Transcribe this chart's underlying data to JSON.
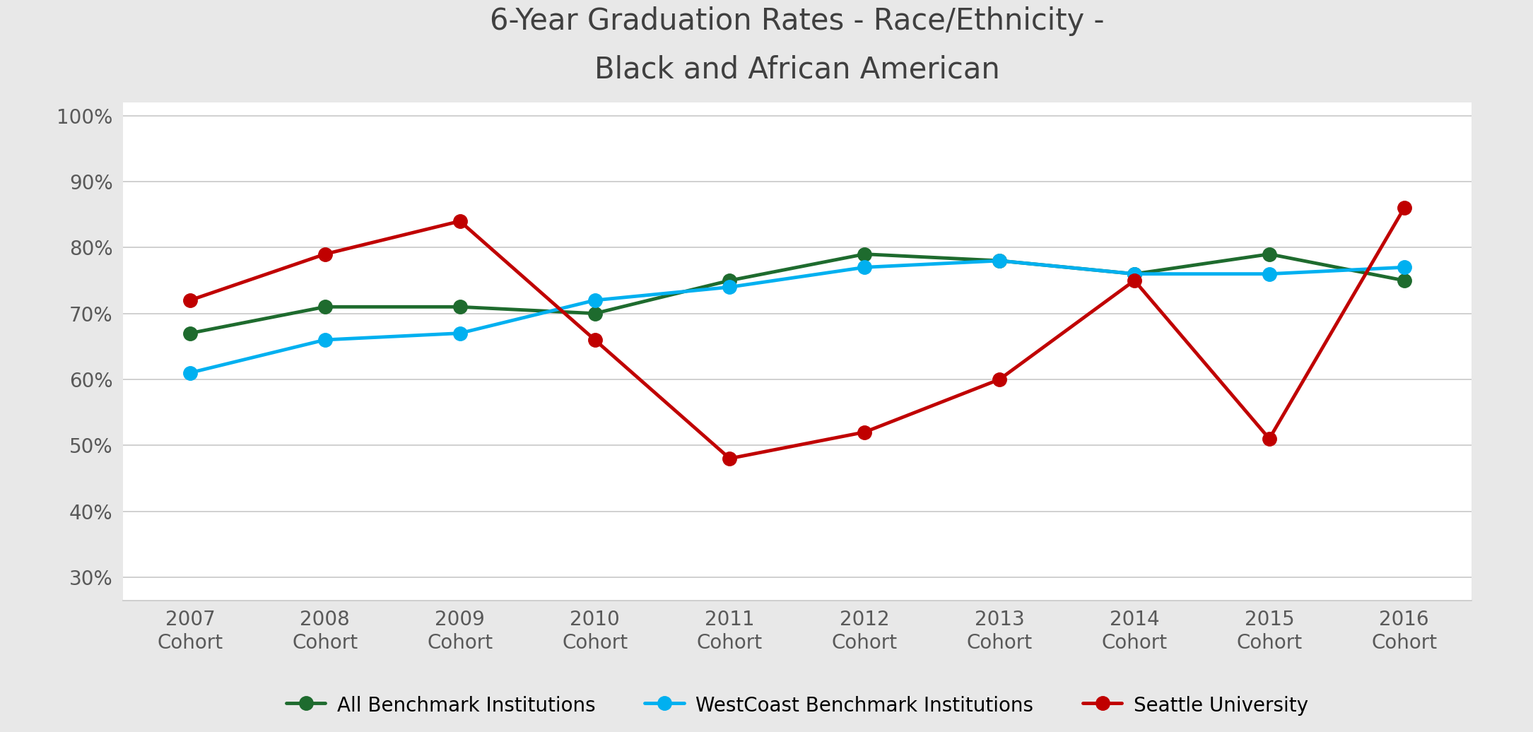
{
  "title": "6-Year Graduation Rates - Race/Ethnicity -\nBlack and African American",
  "categories": [
    "2007\nCohort",
    "2008\nCohort",
    "2009\nCohort",
    "2010\nCohort",
    "2011\nCohort",
    "2012\nCohort",
    "2013\nCohort",
    "2014\nCohort",
    "2015\nCohort",
    "2016\nCohort"
  ],
  "series": [
    {
      "label": "All Benchmark Institutions",
      "color": "#1E6B2E",
      "values": [
        0.67,
        0.71,
        0.71,
        0.7,
        0.75,
        0.79,
        0.78,
        0.76,
        0.79,
        0.75
      ]
    },
    {
      "label": "WestCoast Benchmark Institutions",
      "color": "#00B0F0",
      "values": [
        0.61,
        0.66,
        0.67,
        0.72,
        0.74,
        0.77,
        0.78,
        0.76,
        0.76,
        0.77
      ]
    },
    {
      "label": "Seattle University",
      "color": "#C00000",
      "values": [
        0.72,
        0.79,
        0.84,
        0.66,
        0.48,
        0.52,
        0.6,
        0.75,
        0.51,
        0.86
      ]
    }
  ],
  "ylim": [
    0.265,
    1.02
  ],
  "yticks": [
    0.3,
    0.4,
    0.5,
    0.6,
    0.7,
    0.8,
    0.9,
    1.0
  ],
  "ytick_labels": [
    "30%",
    "40%",
    "50%",
    "60%",
    "70%",
    "80%",
    "90%",
    "100%"
  ],
  "plot_bg_color": "#ffffff",
  "fig_bg_color": "#e8e8e8",
  "grid_color": "#c8c8c8",
  "title_fontsize": 30,
  "tick_fontsize": 20,
  "legend_fontsize": 20,
  "line_width": 3.5,
  "marker_size": 14,
  "marker_style": "o",
  "title_color": "#404040",
  "tick_color": "#595959"
}
